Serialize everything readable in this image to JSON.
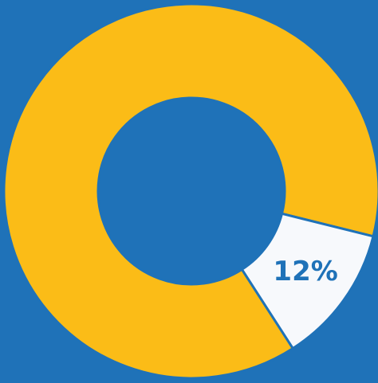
{
  "chart_data": {
    "type": "donut",
    "categories": [
      null,
      null
    ],
    "values": [
      88,
      12
    ],
    "value_labels": [
      null,
      "12%"
    ],
    "colors": [
      "#fbbc17",
      "#f7f9fc"
    ]
  }
}
